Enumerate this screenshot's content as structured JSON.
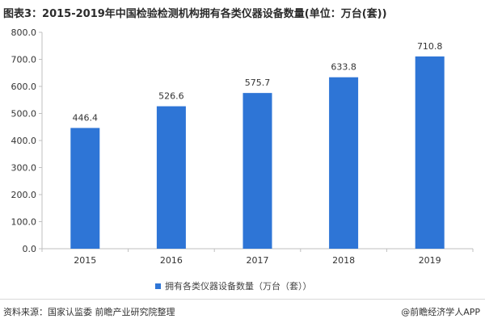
{
  "title": "图表3：2015-2019年中国检验检测机构拥有各类仪器设备数量(单位：万台(套))",
  "source": "资料来源：国家认监委 前瞻产业研究院整理",
  "brand": "@前瞻经济学人APP",
  "colors": {
    "bar": "#2e75d6",
    "grid": "#d9d9d9",
    "axis": "#bfbfbf",
    "text": "#333333"
  },
  "chart_data": {
    "type": "bar",
    "categories": [
      "2015",
      "2016",
      "2017",
      "2018",
      "2019"
    ],
    "series": [
      {
        "name": "拥有各类仪器设备数量（万台（套））",
        "values": [
          446.4,
          526.6,
          575.7,
          633.8,
          710.8
        ]
      }
    ],
    "value_labels": [
      "446.4",
      "526.6",
      "575.7",
      "633.8",
      "710.8"
    ],
    "y_ticks": [
      "0.0",
      "100.0",
      "200.0",
      "300.0",
      "400.0",
      "500.0",
      "600.0",
      "700.0",
      "800.0"
    ],
    "ylim": [
      0,
      800
    ],
    "grid": false,
    "legend_position": "bottom"
  }
}
